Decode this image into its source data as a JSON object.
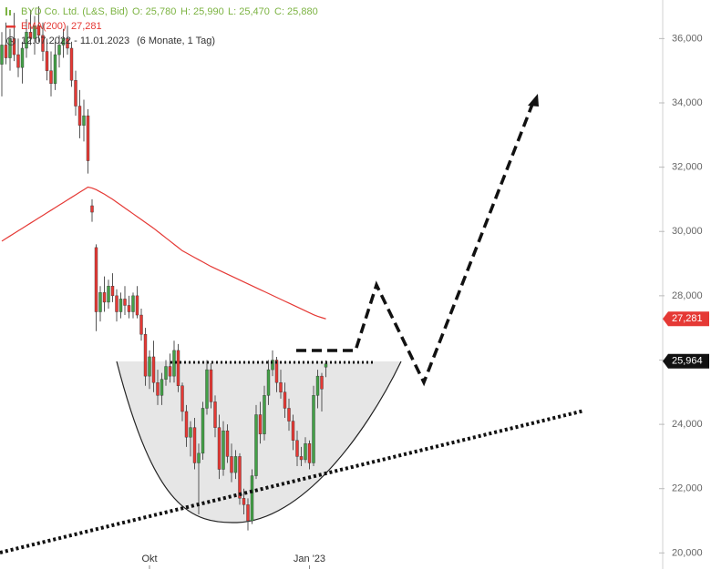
{
  "chart_data": {
    "type": "candlestick",
    "title": "BYD Co. Ltd. (L&S, Bid)",
    "ohlc_labels": [
      "O: 25,780",
      "H: 25,990",
      "L: 25,470",
      "C: 25,880"
    ],
    "date_range": "12.07.2022 - 11.01.2023",
    "period": "(6 Monate, 1 Tag)",
    "categories": [
      null,
      null,
      null,
      null,
      null,
      null,
      null,
      null,
      null,
      null,
      null,
      null,
      null,
      null,
      null,
      null,
      null,
      null,
      null,
      null,
      null,
      null,
      null,
      null,
      null,
      null,
      null,
      null,
      null,
      null,
      null,
      null,
      null,
      null,
      null,
      null,
      "Okt",
      null,
      null,
      null,
      null,
      null,
      null,
      null,
      null,
      null,
      null,
      null,
      null,
      null,
      null,
      null,
      null,
      null,
      null,
      null,
      null,
      null,
      null,
      null,
      null,
      null,
      null,
      null,
      null,
      null,
      null,
      null,
      null,
      null,
      null,
      null,
      null,
      null,
      null,
      "Jan '23",
      null,
      null,
      null,
      null
    ],
    "ohlc": {
      "open": [
        35200,
        35800,
        35400,
        36000,
        35500,
        35100,
        35700,
        36200,
        36000,
        36400,
        36100,
        35600,
        35000,
        34600,
        35500,
        35800,
        36000,
        35700,
        34700,
        33900,
        33300,
        33600,
        30800,
        29500,
        27500,
        28100,
        27800,
        28300,
        28000,
        27500,
        27900,
        27700,
        27500,
        28000,
        27400,
        26800,
        25500,
        26100,
        25300,
        24900,
        25400,
        25800,
        25500,
        26300,
        25200,
        24400,
        23600,
        23900,
        22800,
        23100,
        24500,
        25700,
        24700,
        23900,
        22600,
        23800,
        23000,
        22500,
        23000,
        21700,
        21500,
        21000,
        22400,
        24300,
        23700,
        24900,
        25700,
        26000,
        25300,
        25000,
        24500,
        24100,
        23500,
        23000,
        22900,
        23400,
        22800,
        24900,
        25500,
        25780
      ],
      "high": [
        36200,
        36500,
        36300,
        36800,
        36000,
        35900,
        36600,
        36900,
        36700,
        37000,
        36500,
        36000,
        35600,
        35900,
        36100,
        36300,
        36400,
        35900,
        35000,
        34400,
        34100,
        33800,
        31000,
        29600,
        28300,
        28600,
        28500,
        28700,
        28200,
        28100,
        28300,
        28000,
        28100,
        28300,
        27600,
        27000,
        26300,
        26600,
        25700,
        25600,
        26000,
        26200,
        26600,
        26500,
        25300,
        24600,
        24100,
        24200,
        23400,
        24700,
        26000,
        25900,
        24900,
        24300,
        24100,
        24000,
        23400,
        23200,
        23100,
        22000,
        21700,
        22600,
        24600,
        24700,
        25200,
        26000,
        26300,
        26100,
        25700,
        25300,
        24800,
        24300,
        23800,
        23300,
        23600,
        23500,
        25200,
        25700,
        25600,
        25990
      ],
      "low": [
        34200,
        35200,
        35000,
        35300,
        34800,
        34600,
        35400,
        35800,
        35500,
        35900,
        35300,
        34700,
        34200,
        34400,
        35100,
        35400,
        35500,
        34500,
        33600,
        32900,
        32800,
        31800,
        30300,
        26900,
        27200,
        27500,
        27600,
        27800,
        27200,
        27300,
        27400,
        27300,
        27300,
        27300,
        26600,
        25200,
        25100,
        25000,
        24600,
        24600,
        25200,
        25300,
        25300,
        25000,
        24100,
        23300,
        23000,
        22600,
        21200,
        22900,
        24300,
        24500,
        23600,
        22300,
        22400,
        22800,
        22200,
        22300,
        21500,
        21200,
        20700,
        20900,
        22300,
        23400,
        23500,
        24600,
        25500,
        25000,
        24800,
        24200,
        23800,
        23200,
        22700,
        22700,
        22800,
        22600,
        22700,
        24500,
        24400,
        25470
      ],
      "close": [
        35800,
        35400,
        36000,
        35500,
        35100,
        35700,
        36200,
        36000,
        36400,
        36100,
        35600,
        35000,
        34600,
        35500,
        35800,
        36000,
        35700,
        34700,
        33900,
        33300,
        33600,
        32200,
        30600,
        27500,
        28100,
        27800,
        28300,
        28000,
        27500,
        27900,
        27700,
        27500,
        28000,
        27400,
        26800,
        25500,
        26100,
        25300,
        24900,
        25400,
        25800,
        25500,
        26300,
        25200,
        24400,
        23600,
        23900,
        22800,
        23100,
        24500,
        25700,
        24700,
        23900,
        22600,
        23800,
        23000,
        22500,
        23000,
        21700,
        21500,
        21000,
        22400,
        24300,
        23700,
        24900,
        25700,
        26000,
        25300,
        25000,
        24500,
        24100,
        23500,
        23000,
        22900,
        23400,
        22800,
        24900,
        25500,
        25100,
        25880
      ]
    },
    "up_color": "#43a047",
    "down_color": "#e53935",
    "ema": {
      "name": "EMA(200)",
      "color": "#e53935",
      "last_label": "27,281",
      "values": [
        29700,
        29780,
        29860,
        29940,
        30020,
        30100,
        30180,
        30260,
        30340,
        30420,
        30500,
        30580,
        30660,
        30740,
        30820,
        30900,
        30980,
        31060,
        31140,
        31220,
        31300,
        31380,
        31350,
        31300,
        31230,
        31160,
        31080,
        31000,
        30910,
        30820,
        30730,
        30640,
        30550,
        30460,
        30370,
        30280,
        30190,
        30100,
        30000,
        29900,
        29800,
        29700,
        29600,
        29500,
        29400,
        29330,
        29260,
        29190,
        29120,
        29050,
        28980,
        28910,
        28850,
        28790,
        28730,
        28670,
        28610,
        28550,
        28490,
        28430,
        28370,
        28310,
        28250,
        28190,
        28130,
        28070,
        28010,
        27950,
        27890,
        27830,
        27770,
        27710,
        27650,
        27590,
        27530,
        27470,
        27410,
        27360,
        27320,
        27281
      ]
    },
    "last_price": {
      "value": 25964,
      "label": "25,964"
    },
    "ylim": [
      19500,
      37200
    ],
    "yticks": [
      {
        "value": 20000,
        "label": "20,000"
      },
      {
        "value": 22000,
        "label": "22,000"
      },
      {
        "value": 24000,
        "label": "24,000"
      },
      {
        "value": 26000,
        "label": "26,000"
      },
      {
        "value": 28000,
        "label": "28,000"
      },
      {
        "value": 30000,
        "label": "30,000"
      },
      {
        "value": 32000,
        "label": "32,000"
      },
      {
        "value": 34000,
        "label": "34,000"
      },
      {
        "value": 36000,
        "label": "36,000"
      }
    ]
  }
}
